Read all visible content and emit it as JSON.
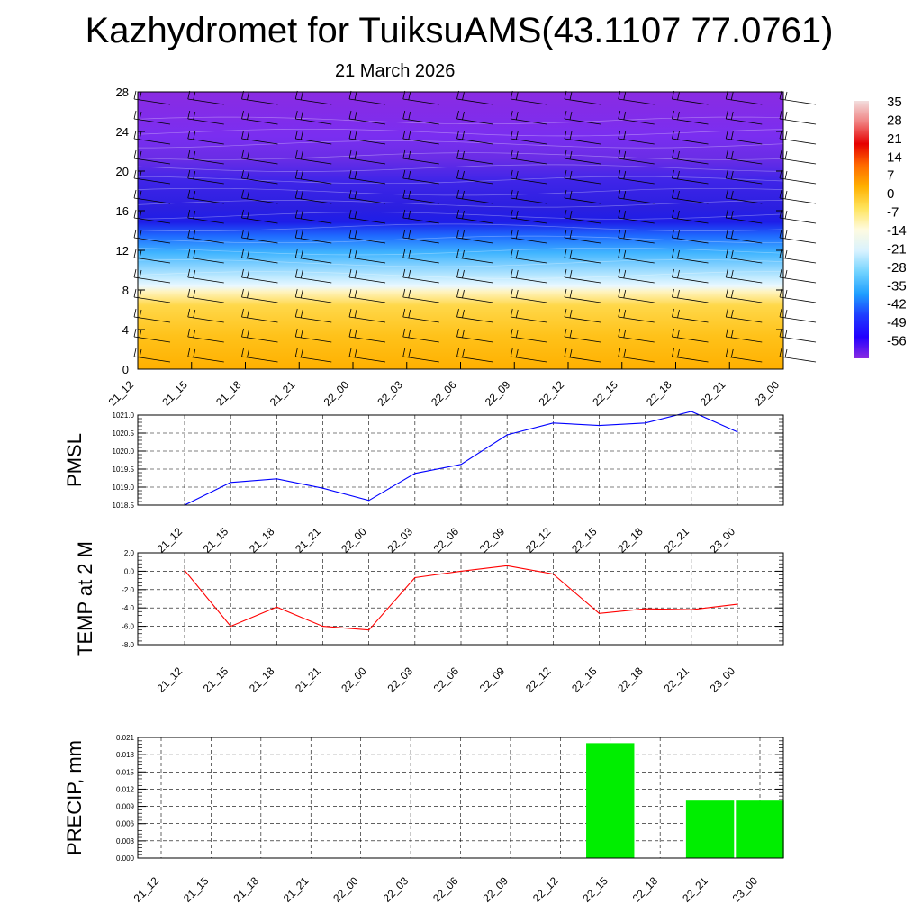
{
  "title": "Kazhydromet for TuiksuAMS(43.1107 77.0761)",
  "subtitle": "21 March 2026",
  "colors": {
    "pmsl_line": "#0000ff",
    "temp_line": "#ff0000",
    "precip_bar": "#00ee00",
    "colorbar_stops": [
      "#f2dede",
      "#f08080",
      "#e60000",
      "#ff6a00",
      "#ffb000",
      "#ffe45c",
      "#fffbe0",
      "#d8f2ff",
      "#6fd2ff",
      "#1f9fff",
      "#1e3cff",
      "#2200ff",
      "#8a2be2"
    ]
  },
  "chart_data": [
    {
      "type": "heatmap",
      "ylabel": "",
      "ylim": [
        0,
        28
      ],
      "y_ticks": [
        "0",
        "4",
        "8",
        "12",
        "16",
        "20",
        "24",
        "28"
      ],
      "categories": [
        "21_12",
        "21_15",
        "21_18",
        "21_21",
        "22_00",
        "22_03",
        "22_06",
        "22_09",
        "22_12",
        "22_15",
        "22_18",
        "22_21",
        "23_00"
      ],
      "colorbar": {
        "labels": [
          "35",
          "28",
          "21",
          "14",
          "7",
          "0",
          "-7",
          "-14",
          "-21",
          "-28",
          "-35",
          "-42",
          "-49",
          "-56"
        ],
        "min": -63,
        "max": 35
      },
      "wind_barbs": true
    },
    {
      "type": "line",
      "ylabel": "PMSL",
      "categories": [
        "21_12",
        "21_15",
        "21_18",
        "21_21",
        "22_00",
        "22_03",
        "22_06",
        "22_09",
        "22_12",
        "22_15",
        "22_18",
        "22_21",
        "23_00"
      ],
      "ylim": [
        1018.5,
        1021.0
      ],
      "y_ticks": [
        "1018.5",
        "1019.0",
        "1019.5",
        "1020.0",
        "1020.5",
        "1021.0"
      ],
      "values": [
        1018.5,
        1019.13,
        1019.23,
        1018.97,
        1018.63,
        1019.38,
        1019.63,
        1020.45,
        1020.78,
        1020.71,
        1020.78,
        1021.1,
        1020.53
      ],
      "grid": true
    },
    {
      "type": "line",
      "ylabel": "TEMP at 2 M",
      "categories": [
        "21_12",
        "21_15",
        "21_18",
        "21_21",
        "22_00",
        "22_03",
        "22_06",
        "22_09",
        "22_12",
        "22_15",
        "22_18",
        "22_21",
        "23_00"
      ],
      "ylim": [
        -8.0,
        2.0
      ],
      "y_ticks": [
        "-8.0",
        "-6.0",
        "-4.0",
        "-2.0",
        "0.0",
        "2.0"
      ],
      "values": [
        0.1,
        -6.0,
        -3.9,
        -6.0,
        -6.4,
        -0.7,
        0.0,
        0.6,
        -0.3,
        -4.6,
        -4.1,
        -4.2,
        -3.6
      ],
      "grid": true
    },
    {
      "type": "bar",
      "ylabel": "PRECIP, mm",
      "categories": [
        "21_12",
        "21_15",
        "21_18",
        "21_21",
        "22_00",
        "22_03",
        "22_06",
        "22_09",
        "22_12",
        "22_15",
        "22_18",
        "22_21",
        "23_00"
      ],
      "ylim": [
        0,
        0.021
      ],
      "y_ticks": [
        "0.000",
        "0.003",
        "0.006",
        "0.009",
        "0.012",
        "0.015",
        "0.018",
        "0.021"
      ],
      "values": [
        0,
        0,
        0,
        0,
        0,
        0,
        0,
        0,
        0,
        0.02,
        0,
        0.01,
        0.01
      ],
      "grid": true
    }
  ]
}
